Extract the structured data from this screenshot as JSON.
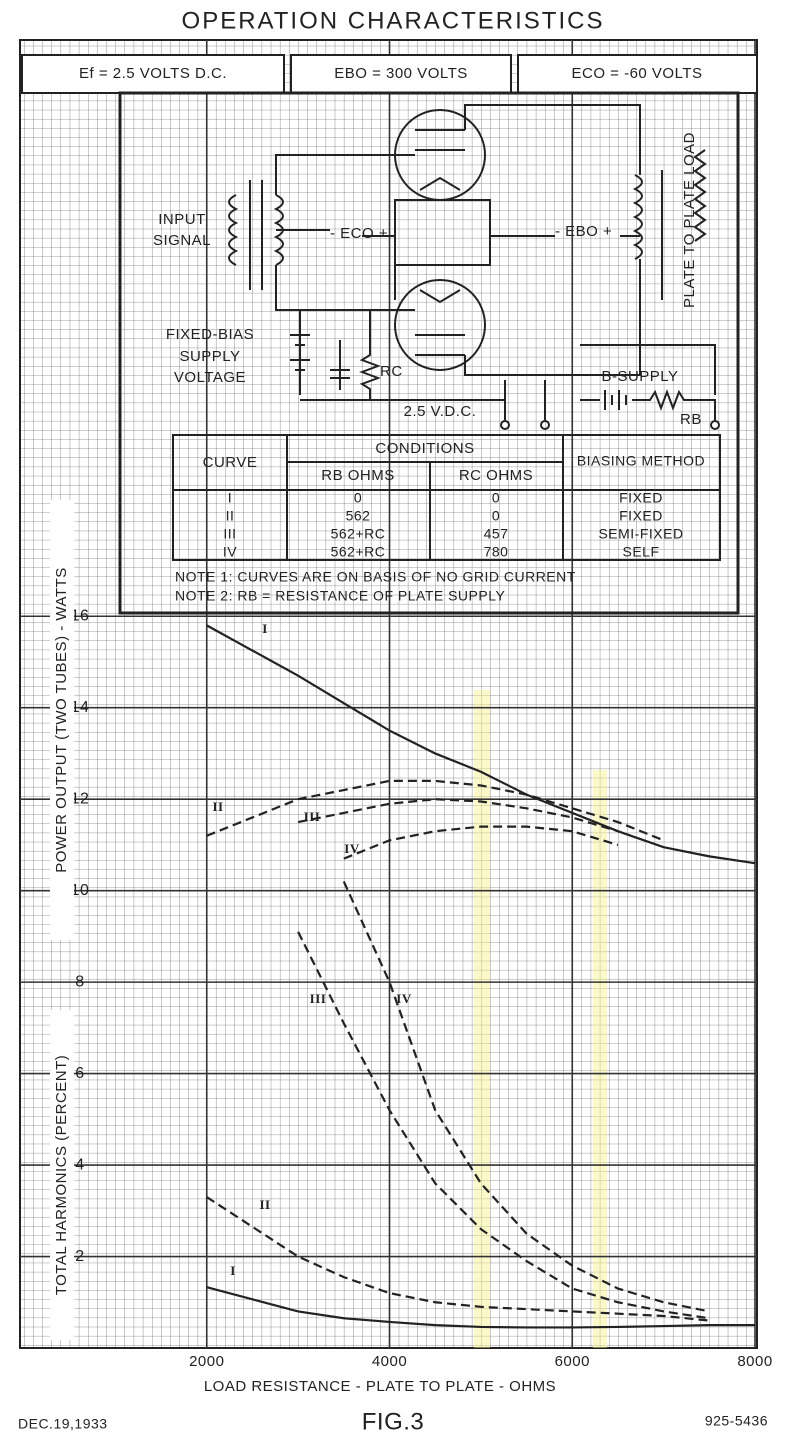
{
  "header": {
    "title": "OPERATION CHARACTERISTICS",
    "conditions": [
      "Ef = 2.5 VOLTS D.C.",
      "EBO = 300 VOLTS",
      "ECO = -60 VOLTS"
    ]
  },
  "circuit": {
    "input": [
      "INPUT",
      "SIGNAL"
    ],
    "grid_bias": "- ECO +",
    "plate_voltage": "- EBO +",
    "fixed_bias": [
      "FIXED-BIAS",
      "SUPPLY",
      "VOLTAGE"
    ],
    "rc": "RC",
    "rb": "RB",
    "b_supply": "B-SUPPLY",
    "filament": "2.5 V.D.C.",
    "load": "PLATE TO PLATE LOAD"
  },
  "table": {
    "header": [
      "CURVE",
      "CONDITIONS",
      "BIASING METHOD"
    ],
    "subheader": [
      "RB OHMS",
      "RC OHMS"
    ],
    "rows": [
      [
        "I",
        "0",
        "0",
        "FIXED"
      ],
      [
        "II",
        "562",
        "0",
        "FIXED"
      ],
      [
        "III",
        "562+RC",
        "457",
        "SEMI-FIXED"
      ],
      [
        "IV",
        "562+RC",
        "780",
        "SELF"
      ]
    ],
    "notes": [
      "NOTE 1: CURVES ARE ON BASIS OF NO GRID CURRENT",
      "NOTE 2: RB = RESISTANCE OF PLATE SUPPLY"
    ]
  },
  "chart_data": {
    "type": "line",
    "x_label": "LOAD RESISTANCE - PLATE TO PLATE - OHMS",
    "y_labels": [
      "TOTAL HARMONICS (PERCENT)",
      "POWER OUTPUT (TWO TUBES) - WATTS"
    ],
    "x": [
      2000,
      3000,
      3500,
      4000,
      4500,
      5000,
      5500,
      6000,
      6500,
      7000,
      7500,
      8000
    ],
    "xlim": [
      0,
      8000
    ],
    "xticks": [
      2000,
      4000,
      6000,
      8000
    ],
    "ylim": [
      0,
      28.6
    ],
    "yticks": [
      2,
      4,
      6,
      8,
      10,
      12,
      14,
      16
    ],
    "grid": true,
    "series": [
      {
        "name": "I",
        "color": "#222222",
        "dashed": false,
        "values": [
          15.8,
          14.7,
          14.1,
          13.5,
          13.0,
          12.6,
          12.1,
          11.7,
          11.3,
          10.95,
          10.75,
          10.6
        ]
      },
      {
        "name": "II",
        "color": "#222222",
        "dashed": true,
        "values": [
          11.2,
          12.0,
          12.2,
          12.4,
          12.4,
          12.3,
          12.1,
          11.8,
          11.5,
          11.1,
          null,
          null
        ]
      },
      {
        "name": "III",
        "color": "#222222",
        "dashed": true,
        "values": [
          null,
          11.5,
          11.7,
          11.9,
          12.0,
          11.95,
          11.8,
          11.6,
          11.3,
          null,
          null,
          null
        ]
      },
      {
        "name": "IV",
        "color": "#222222",
        "dashed": true,
        "values": [
          null,
          null,
          10.7,
          11.1,
          11.3,
          11.4,
          11.4,
          11.3,
          11.0,
          null,
          null,
          null
        ]
      },
      {
        "name": "I",
        "color": "#222222",
        "dashed": false,
        "values": [
          1.33,
          0.8,
          0.65,
          0.57,
          0.5,
          0.46,
          0.45,
          0.45,
          0.46,
          0.48,
          0.5,
          0.5
        ]
      },
      {
        "name": "II",
        "color": "#222222",
        "dashed": true,
        "values": [
          3.3,
          2.0,
          1.55,
          1.2,
          1.0,
          0.9,
          0.85,
          0.8,
          0.75,
          0.7,
          0.6,
          null
        ]
      },
      {
        "name": "III",
        "color": "#222222",
        "dashed": true,
        "values": [
          null,
          9.1,
          7.1,
          5.2,
          3.6,
          2.6,
          1.9,
          1.3,
          1.0,
          0.8,
          0.65,
          null
        ]
      },
      {
        "name": "IV",
        "color": "#222222",
        "dashed": true,
        "values": [
          null,
          null,
          10.2,
          8.0,
          5.2,
          3.6,
          2.5,
          1.8,
          1.3,
          1.0,
          0.8,
          null
        ]
      }
    ]
  },
  "footer": {
    "date": "DEC.19,1933",
    "figure": "FIG.3",
    "number": "925-5436"
  }
}
